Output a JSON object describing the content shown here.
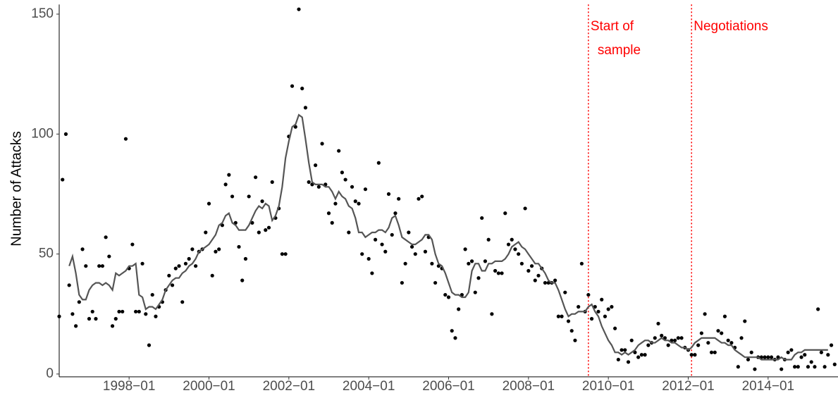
{
  "chart_data": {
    "type": "scatter",
    "y_label": "Number of Attacks",
    "x": [
      "1996-04",
      "1996-05",
      "1996-06",
      "1996-07",
      "1996-08",
      "1996-09",
      "1996-10",
      "1996-11",
      "1996-12",
      "1997-01",
      "1997-02",
      "1997-03",
      "1997-04",
      "1997-05",
      "1997-06",
      "1997-07",
      "1997-08",
      "1997-09",
      "1997-10",
      "1997-11",
      "1997-12",
      "1998-01",
      "1998-02",
      "1998-03",
      "1998-04",
      "1998-05",
      "1998-06",
      "1998-07",
      "1998-08",
      "1998-09",
      "1998-10",
      "1998-11",
      "1998-12",
      "1999-01",
      "1999-02",
      "1999-03",
      "1999-04",
      "1999-05",
      "1999-06",
      "1999-07",
      "1999-08",
      "1999-09",
      "1999-10",
      "1999-11",
      "1999-12",
      "2000-01",
      "2000-02",
      "2000-03",
      "2000-04",
      "2000-05",
      "2000-06",
      "2000-07",
      "2000-08",
      "2000-09",
      "2000-10",
      "2000-11",
      "2000-12",
      "2001-01",
      "2001-02",
      "2001-03",
      "2001-04",
      "2001-05",
      "2001-06",
      "2001-07",
      "2001-08",
      "2001-09",
      "2001-10",
      "2001-11",
      "2001-12",
      "2002-01",
      "2002-02",
      "2002-03",
      "2002-04",
      "2002-05",
      "2002-06",
      "2002-07",
      "2002-08",
      "2002-09",
      "2002-10",
      "2002-11",
      "2002-12",
      "2003-01",
      "2003-02",
      "2003-03",
      "2003-04",
      "2003-05",
      "2003-06",
      "2003-07",
      "2003-08",
      "2003-09",
      "2003-10",
      "2003-11",
      "2003-12",
      "2004-01",
      "2004-02",
      "2004-03",
      "2004-04",
      "2004-05",
      "2004-06",
      "2004-07",
      "2004-08",
      "2004-09",
      "2004-10",
      "2004-11",
      "2004-12",
      "2005-01",
      "2005-02",
      "2005-03",
      "2005-04",
      "2005-05",
      "2005-06",
      "2005-07",
      "2005-08",
      "2005-09",
      "2005-10",
      "2005-11",
      "2005-12",
      "2006-01",
      "2006-02",
      "2006-03",
      "2006-04",
      "2006-05",
      "2006-06",
      "2006-07",
      "2006-08",
      "2006-09",
      "2006-10",
      "2006-11",
      "2006-12",
      "2007-01",
      "2007-02",
      "2007-03",
      "2007-04",
      "2007-05",
      "2007-06",
      "2007-07",
      "2007-08",
      "2007-09",
      "2007-10",
      "2007-11",
      "2007-12",
      "2008-01",
      "2008-02",
      "2008-03",
      "2008-04",
      "2008-05",
      "2008-06",
      "2008-07",
      "2008-08",
      "2008-09",
      "2008-10",
      "2008-11",
      "2008-12",
      "2009-01",
      "2009-02",
      "2009-03",
      "2009-04",
      "2009-05",
      "2009-06",
      "2009-07",
      "2009-08",
      "2009-09",
      "2009-10",
      "2009-11",
      "2009-12",
      "2010-01",
      "2010-02",
      "2010-03",
      "2010-04",
      "2010-05",
      "2010-06",
      "2010-07",
      "2010-08",
      "2010-09",
      "2010-10",
      "2010-11",
      "2010-12",
      "2011-01",
      "2011-02",
      "2011-03",
      "2011-04",
      "2011-05",
      "2011-06",
      "2011-07",
      "2011-08",
      "2011-09",
      "2011-10",
      "2011-11",
      "2011-12",
      "2012-01",
      "2012-02",
      "2012-03",
      "2012-04",
      "2012-05",
      "2012-06",
      "2012-07",
      "2012-08",
      "2012-09",
      "2012-10",
      "2012-11",
      "2012-12",
      "2013-01",
      "2013-02",
      "2013-03",
      "2013-04",
      "2013-05",
      "2013-06",
      "2013-07",
      "2013-08",
      "2013-09",
      "2013-10",
      "2013-11",
      "2013-12",
      "2014-01",
      "2014-02",
      "2014-03",
      "2014-04",
      "2014-05",
      "2014-06",
      "2014-07",
      "2014-08",
      "2014-09",
      "2014-10",
      "2014-11",
      "2014-12",
      "2015-01",
      "2015-02",
      "2015-03",
      "2015-04",
      "2015-05",
      "2015-06",
      "2015-07",
      "2015-08",
      "2015-09"
    ],
    "series": [
      {
        "kind": "points",
        "color": "#000000",
        "values": [
          24,
          81,
          100,
          37,
          25,
          20,
          30,
          52,
          45,
          23,
          26,
          23,
          45,
          45,
          57,
          49,
          20,
          23,
          26,
          26,
          98,
          44,
          54,
          26,
          26,
          46,
          25,
          12,
          33,
          24,
          28,
          30,
          35,
          41,
          37,
          44,
          45,
          30,
          46,
          48,
          52,
          45,
          51,
          52,
          59,
          71,
          41,
          51,
          52,
          62,
          79,
          83,
          74,
          63,
          53,
          39,
          48,
          74,
          63,
          82,
          59,
          72,
          60,
          61,
          80,
          65,
          69,
          50,
          50,
          99,
          120,
          103,
          152,
          119,
          111,
          80,
          79,
          87,
          78,
          96,
          79,
          67,
          63,
          71,
          93,
          84,
          81,
          59,
          78,
          72,
          71,
          50,
          77,
          48,
          42,
          56,
          88,
          54,
          51,
          75,
          58,
          67,
          73,
          38,
          46,
          59,
          53,
          50,
          73,
          74,
          51,
          57,
          46,
          38,
          45,
          44,
          33,
          32,
          18,
          15,
          27,
          33,
          52,
          46,
          47,
          34,
          40,
          65,
          47,
          56,
          25,
          43,
          42,
          42,
          67,
          54,
          56,
          52,
          50,
          46,
          69,
          43,
          45,
          39,
          41,
          44,
          38,
          38,
          38,
          39,
          24,
          24,
          34,
          22,
          18,
          14,
          28,
          46,
          26,
          33,
          23,
          28,
          26,
          31,
          24,
          27,
          28,
          19,
          6,
          10,
          10,
          5,
          14,
          9,
          7,
          8,
          8,
          12,
          13,
          15,
          21,
          16,
          15,
          12,
          14,
          14,
          15,
          15,
          11,
          10,
          8,
          8,
          12,
          17,
          25,
          13,
          9,
          9,
          18,
          17,
          24,
          14,
          13,
          11,
          3,
          15,
          22,
          6,
          9,
          2,
          7,
          7,
          7,
          7,
          7,
          6,
          7,
          2,
          6,
          9,
          10,
          3,
          3,
          7,
          8,
          3,
          5,
          3,
          27,
          9,
          3,
          8,
          12,
          4
        ]
      },
      {
        "kind": "line",
        "color": "#555555",
        "values": [
          null,
          null,
          null,
          45,
          49,
          42,
          33,
          31,
          31,
          35,
          37,
          38,
          38,
          37,
          38,
          37,
          35,
          42,
          41,
          42,
          43,
          45,
          45,
          46,
          33,
          32,
          27,
          28,
          28,
          27,
          29,
          31,
          35,
          37,
          39,
          40,
          40,
          42,
          43,
          45,
          46,
          48,
          51,
          52,
          53,
          54,
          56,
          58,
          62,
          63,
          66,
          67,
          63,
          62,
          60,
          60,
          60,
          62,
          65,
          68,
          70,
          69,
          71,
          70,
          64,
          66,
          70,
          78,
          90,
          97,
          103,
          104,
          108,
          107,
          98,
          88,
          80,
          79,
          79,
          79,
          78,
          78,
          76,
          73,
          76,
          74,
          73,
          70,
          69,
          65,
          59,
          59,
          57,
          58,
          59,
          59,
          60,
          60,
          59,
          61,
          65,
          66,
          62,
          57,
          56,
          55,
          54,
          54,
          55,
          56,
          58,
          58,
          56,
          50,
          46,
          45,
          42,
          38,
          34,
          33,
          33,
          32,
          32,
          34,
          43,
          46,
          46,
          43,
          43,
          46,
          46,
          47,
          47,
          47,
          48,
          50,
          53,
          54,
          55,
          53,
          52,
          50,
          48,
          46,
          46,
          44,
          42,
          39,
          38,
          38,
          35,
          31,
          27,
          24,
          25,
          25,
          26,
          26,
          26,
          28,
          29,
          26,
          24,
          20,
          17,
          14,
          12,
          9,
          9,
          8,
          9,
          8,
          9,
          10,
          12,
          13,
          14,
          14,
          13,
          13,
          14,
          15,
          14,
          14,
          13,
          13,
          12,
          11,
          11,
          10,
          11,
          13,
          14,
          15,
          15,
          15,
          15,
          15,
          14,
          13,
          13,
          12,
          12,
          10,
          9,
          8,
          7,
          7,
          7,
          7,
          7,
          6,
          6,
          6,
          6,
          6,
          6,
          7,
          6,
          6,
          6,
          8,
          9,
          9,
          10,
          10,
          10,
          10,
          10,
          10,
          10,
          10,
          null,
          null
        ]
      }
    ],
    "xlim": [
      "1996-04",
      "2015-10"
    ],
    "ylim": [
      0,
      154
    ],
    "xticks": [
      {
        "value": "1998-01",
        "label": "1998−01"
      },
      {
        "value": "2000-01",
        "label": "2000−01"
      },
      {
        "value": "2002-01",
        "label": "2002−01"
      },
      {
        "value": "2004-01",
        "label": "2004−01"
      },
      {
        "value": "2006-01",
        "label": "2006−01"
      },
      {
        "value": "2008-01",
        "label": "2008−01"
      },
      {
        "value": "2010-01",
        "label": "2010−01"
      },
      {
        "value": "2012-01",
        "label": "2012−01"
      },
      {
        "value": "2014-01",
        "label": "2014−01"
      }
    ],
    "yticks": [
      0,
      50,
      100,
      150
    ],
    "annotations": [
      {
        "x": "2009-07",
        "lines": [
          "Start of",
          "sample"
        ],
        "color": "#ff0000"
      },
      {
        "x": "2012-02",
        "lines": [
          "Negotiations"
        ],
        "color": "#ff0000"
      }
    ]
  }
}
